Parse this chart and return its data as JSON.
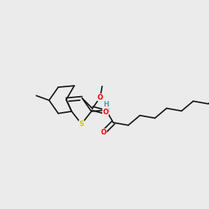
{
  "bg_color": "#ebebeb",
  "atom_colors": {
    "C": "#1a1a1a",
    "O": "#ff0000",
    "N": "#0000ff",
    "S": "#cccc00",
    "H": "#5f9ea0"
  },
  "bond_color": "#1a1a1a",
  "bond_lw": 1.4,
  "figsize": [
    3.0,
    3.0
  ],
  "dpi": 100,
  "font_size": 7.0
}
